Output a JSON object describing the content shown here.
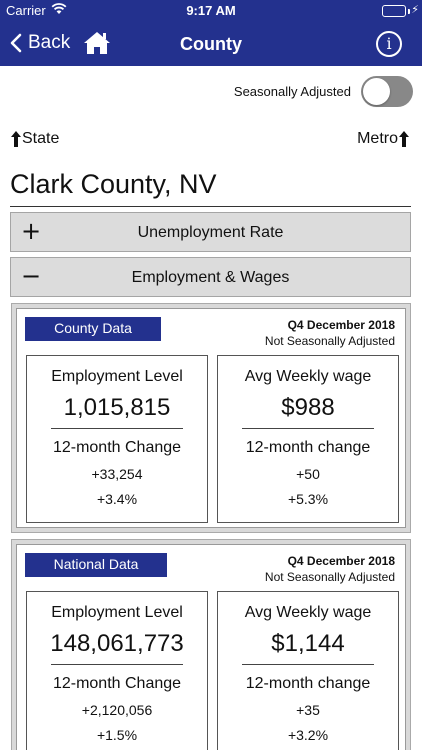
{
  "status_bar": {
    "carrier": "Carrier",
    "time": "9:17 AM"
  },
  "nav": {
    "back_label": "Back",
    "title": "County",
    "info_glyph": "i"
  },
  "toggle": {
    "label": "Seasonally Adjusted",
    "on": false
  },
  "links": {
    "state": "State",
    "metro": "Metro"
  },
  "county_name": "Clark County, NV",
  "sections": [
    {
      "sign": "+",
      "label": "Unemployment Rate"
    },
    {
      "sign": "−",
      "label": "Employment & Wages"
    }
  ],
  "panels": [
    {
      "tag": "County Data",
      "quarter": "Q4 December 2018",
      "adjustment": "Not Seasonally Adjusted",
      "employment": {
        "title": "Employment Level",
        "value": "1,015,815",
        "change_label": "12-month Change",
        "change_abs": "+33,254",
        "change_pct": "+3.4%"
      },
      "wage": {
        "title": "Avg Weekly wage",
        "value": "$988",
        "change_label": "12-month change",
        "change_abs": "+50",
        "change_pct": "+5.3%"
      }
    },
    {
      "tag": "National Data",
      "quarter": "Q4 December 2018",
      "adjustment": "Not Seasonally Adjusted",
      "employment": {
        "title": "Employment Level",
        "value": "148,061,773",
        "change_label": "12-month Change",
        "change_abs": "+2,120,056",
        "change_pct": "+1.5%"
      },
      "wage": {
        "title": "Avg Weekly wage",
        "value": "$1,144",
        "change_label": "12-month change",
        "change_abs": "+35",
        "change_pct": "+3.2%"
      }
    }
  ],
  "icons": {
    "wifi": "wifi-icon",
    "battery": "battery-icon",
    "back": "chevron-left-icon",
    "home": "home-icon",
    "info": "info-icon",
    "up_arrow": "arrow-up-icon"
  },
  "colors": {
    "nav_bg": "#23318e",
    "toggle_off": "#888888",
    "battery": "#4cd964",
    "accordion_bg": "#dcdcdc"
  }
}
